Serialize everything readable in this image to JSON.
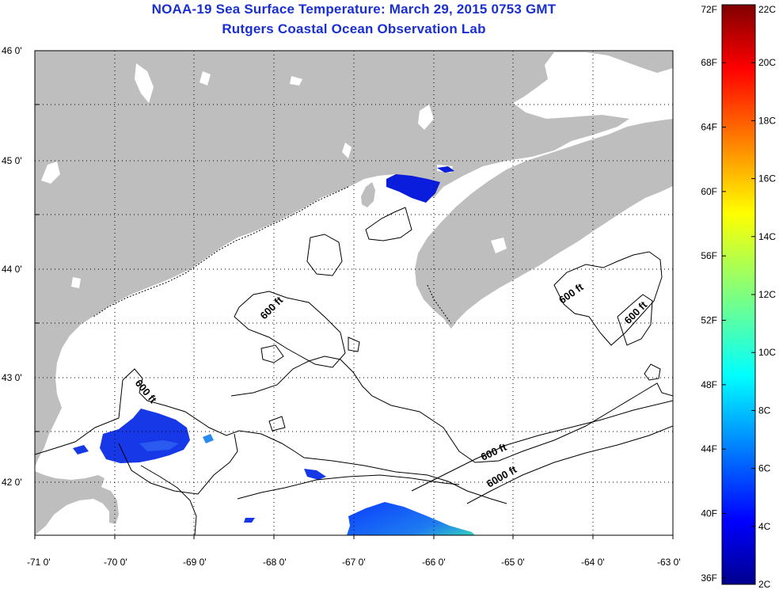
{
  "title": "NOAA-19 Sea Surface Temperature:  March 29, 2015 0753 GMT",
  "subtitle": "Rutgers Coastal Ocean Observation Lab",
  "map": {
    "lon_range": [
      -71,
      -63
    ],
    "lat_range": [
      41.5,
      46
    ],
    "lon_ticks": [
      "-71 0'",
      "-70 0'",
      "-69 0'",
      "-68 0'",
      "-67 0'",
      "-66 0'",
      "-65 0'",
      "-64 0'",
      "-63 0'"
    ],
    "lat_ticks": [
      "46 0'",
      "45 0'",
      "44 0'",
      "43 0'",
      "42 0'"
    ],
    "grid": "dotted",
    "land_color": "#bebebe",
    "water_color": "#ffffff",
    "contour_labels": [
      "600 ft",
      "600 ft",
      "600 ft",
      "600 ft",
      "600 ft",
      "6000 ft"
    ]
  },
  "colorbar": {
    "fahrenheit_labels": [
      "72F",
      "68F",
      "64F",
      "60F",
      "56F",
      "52F",
      "48F",
      "44F",
      "40F",
      "36F"
    ],
    "celsius_labels": [
      "22C",
      "20C",
      "18C",
      "16C",
      "14C",
      "12C",
      "10C",
      "8C",
      "6C",
      "4C",
      "2C"
    ],
    "colormap": "jet",
    "range_celsius": [
      2,
      22
    ]
  }
}
